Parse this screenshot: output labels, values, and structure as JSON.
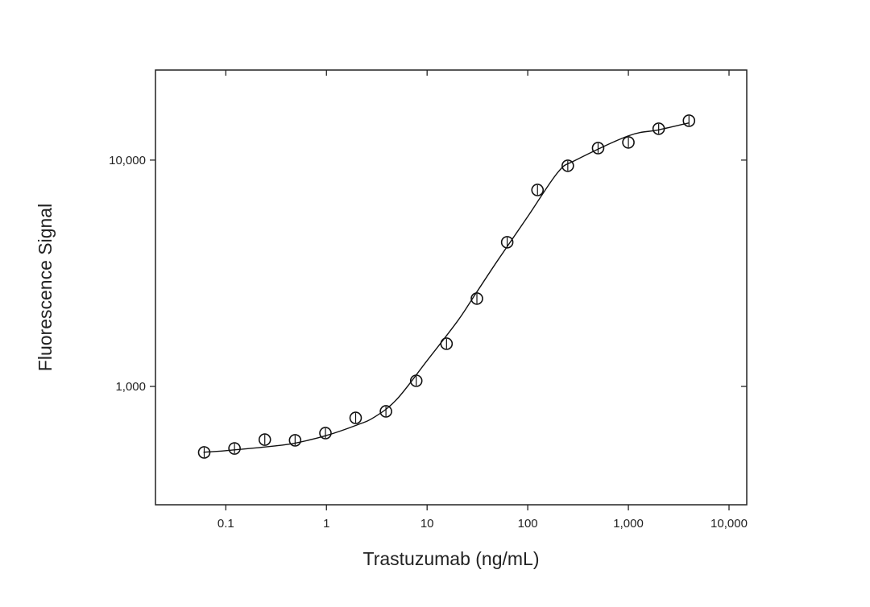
{
  "chart_data": {
    "type": "scatter",
    "xlabel": "Trastuzumab (ng/mL)",
    "ylabel": "Fluorescence Signal",
    "xscale": "log",
    "yscale": "log",
    "xlim": [
      0.02,
      15000
    ],
    "ylim": [
      300,
      25000
    ],
    "xticks": [
      0.1,
      1,
      10,
      100,
      {
        "value": 1000,
        "label": "1,000"
      },
      {
        "value": 10000,
        "label": "10,000"
      }
    ],
    "yticks": [
      {
        "value": 1000,
        "label": "1,000"
      },
      {
        "value": 10000,
        "label": "10,000"
      }
    ],
    "color": "#111111",
    "series": [
      {
        "kind": "points",
        "x": [
          0.061,
          0.122,
          0.244,
          0.488,
          0.977,
          1.95,
          3.9,
          7.8,
          15.6,
          31.25,
          62.5,
          125,
          250,
          500,
          1000,
          2000,
          4000
        ],
        "values": [
          511,
          532,
          582,
          578,
          622,
          726,
          776,
          1059,
          1544,
          2444,
          4336,
          7380,
          9440,
          11300,
          11970,
          13760,
          14930
        ]
      },
      {
        "kind": "fit",
        "x": [
          0.06,
          0.1,
          0.3,
          0.5,
          1,
          2,
          3,
          5,
          10,
          20,
          30,
          50,
          100,
          200,
          300,
          1000,
          2000,
          4000
        ],
        "values": [
          512,
          520,
          545,
          563,
          607,
          675,
          732,
          877,
          1300,
          1940,
          2546,
          3590,
          5630,
          8850,
          10000,
          12800,
          13600,
          14600
        ]
      }
    ]
  }
}
